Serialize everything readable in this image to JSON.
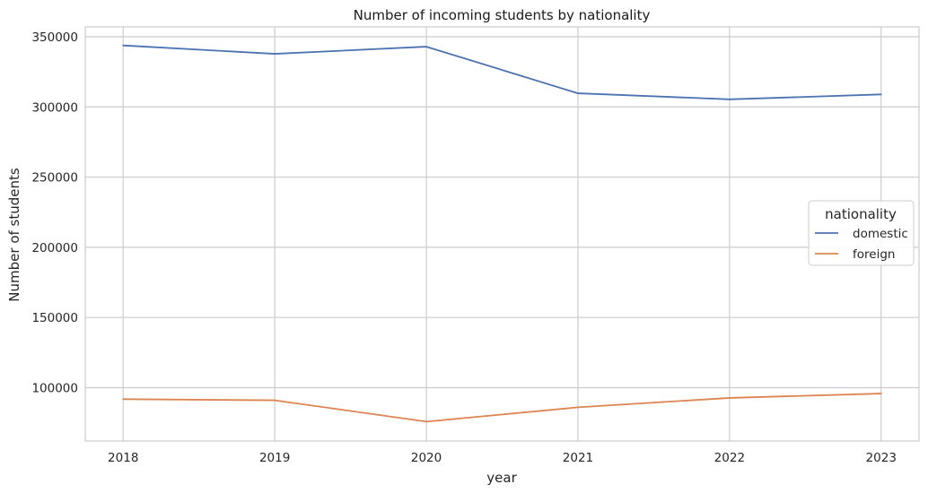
{
  "chart_data": {
    "type": "line",
    "title": "Number of incoming students by nationality",
    "xlabel": "year",
    "ylabel": "Number of students",
    "x": [
      2018,
      2019,
      2020,
      2021,
      2022,
      2023
    ],
    "ylim": [
      62000,
      357000
    ],
    "yticks": [
      100000,
      150000,
      200000,
      250000,
      300000,
      350000
    ],
    "grid": true,
    "legend": {
      "title": "nationality",
      "placement": "center-right"
    },
    "series": [
      {
        "name": "domestic",
        "color": "#4c72b0",
        "values": [
          343800,
          337800,
          342900,
          309700,
          305400,
          308900
        ]
      },
      {
        "name": "foreign",
        "color": "#dd8452",
        "values": [
          91800,
          91000,
          75800,
          86000,
          92700,
          95800
        ]
      }
    ]
  }
}
